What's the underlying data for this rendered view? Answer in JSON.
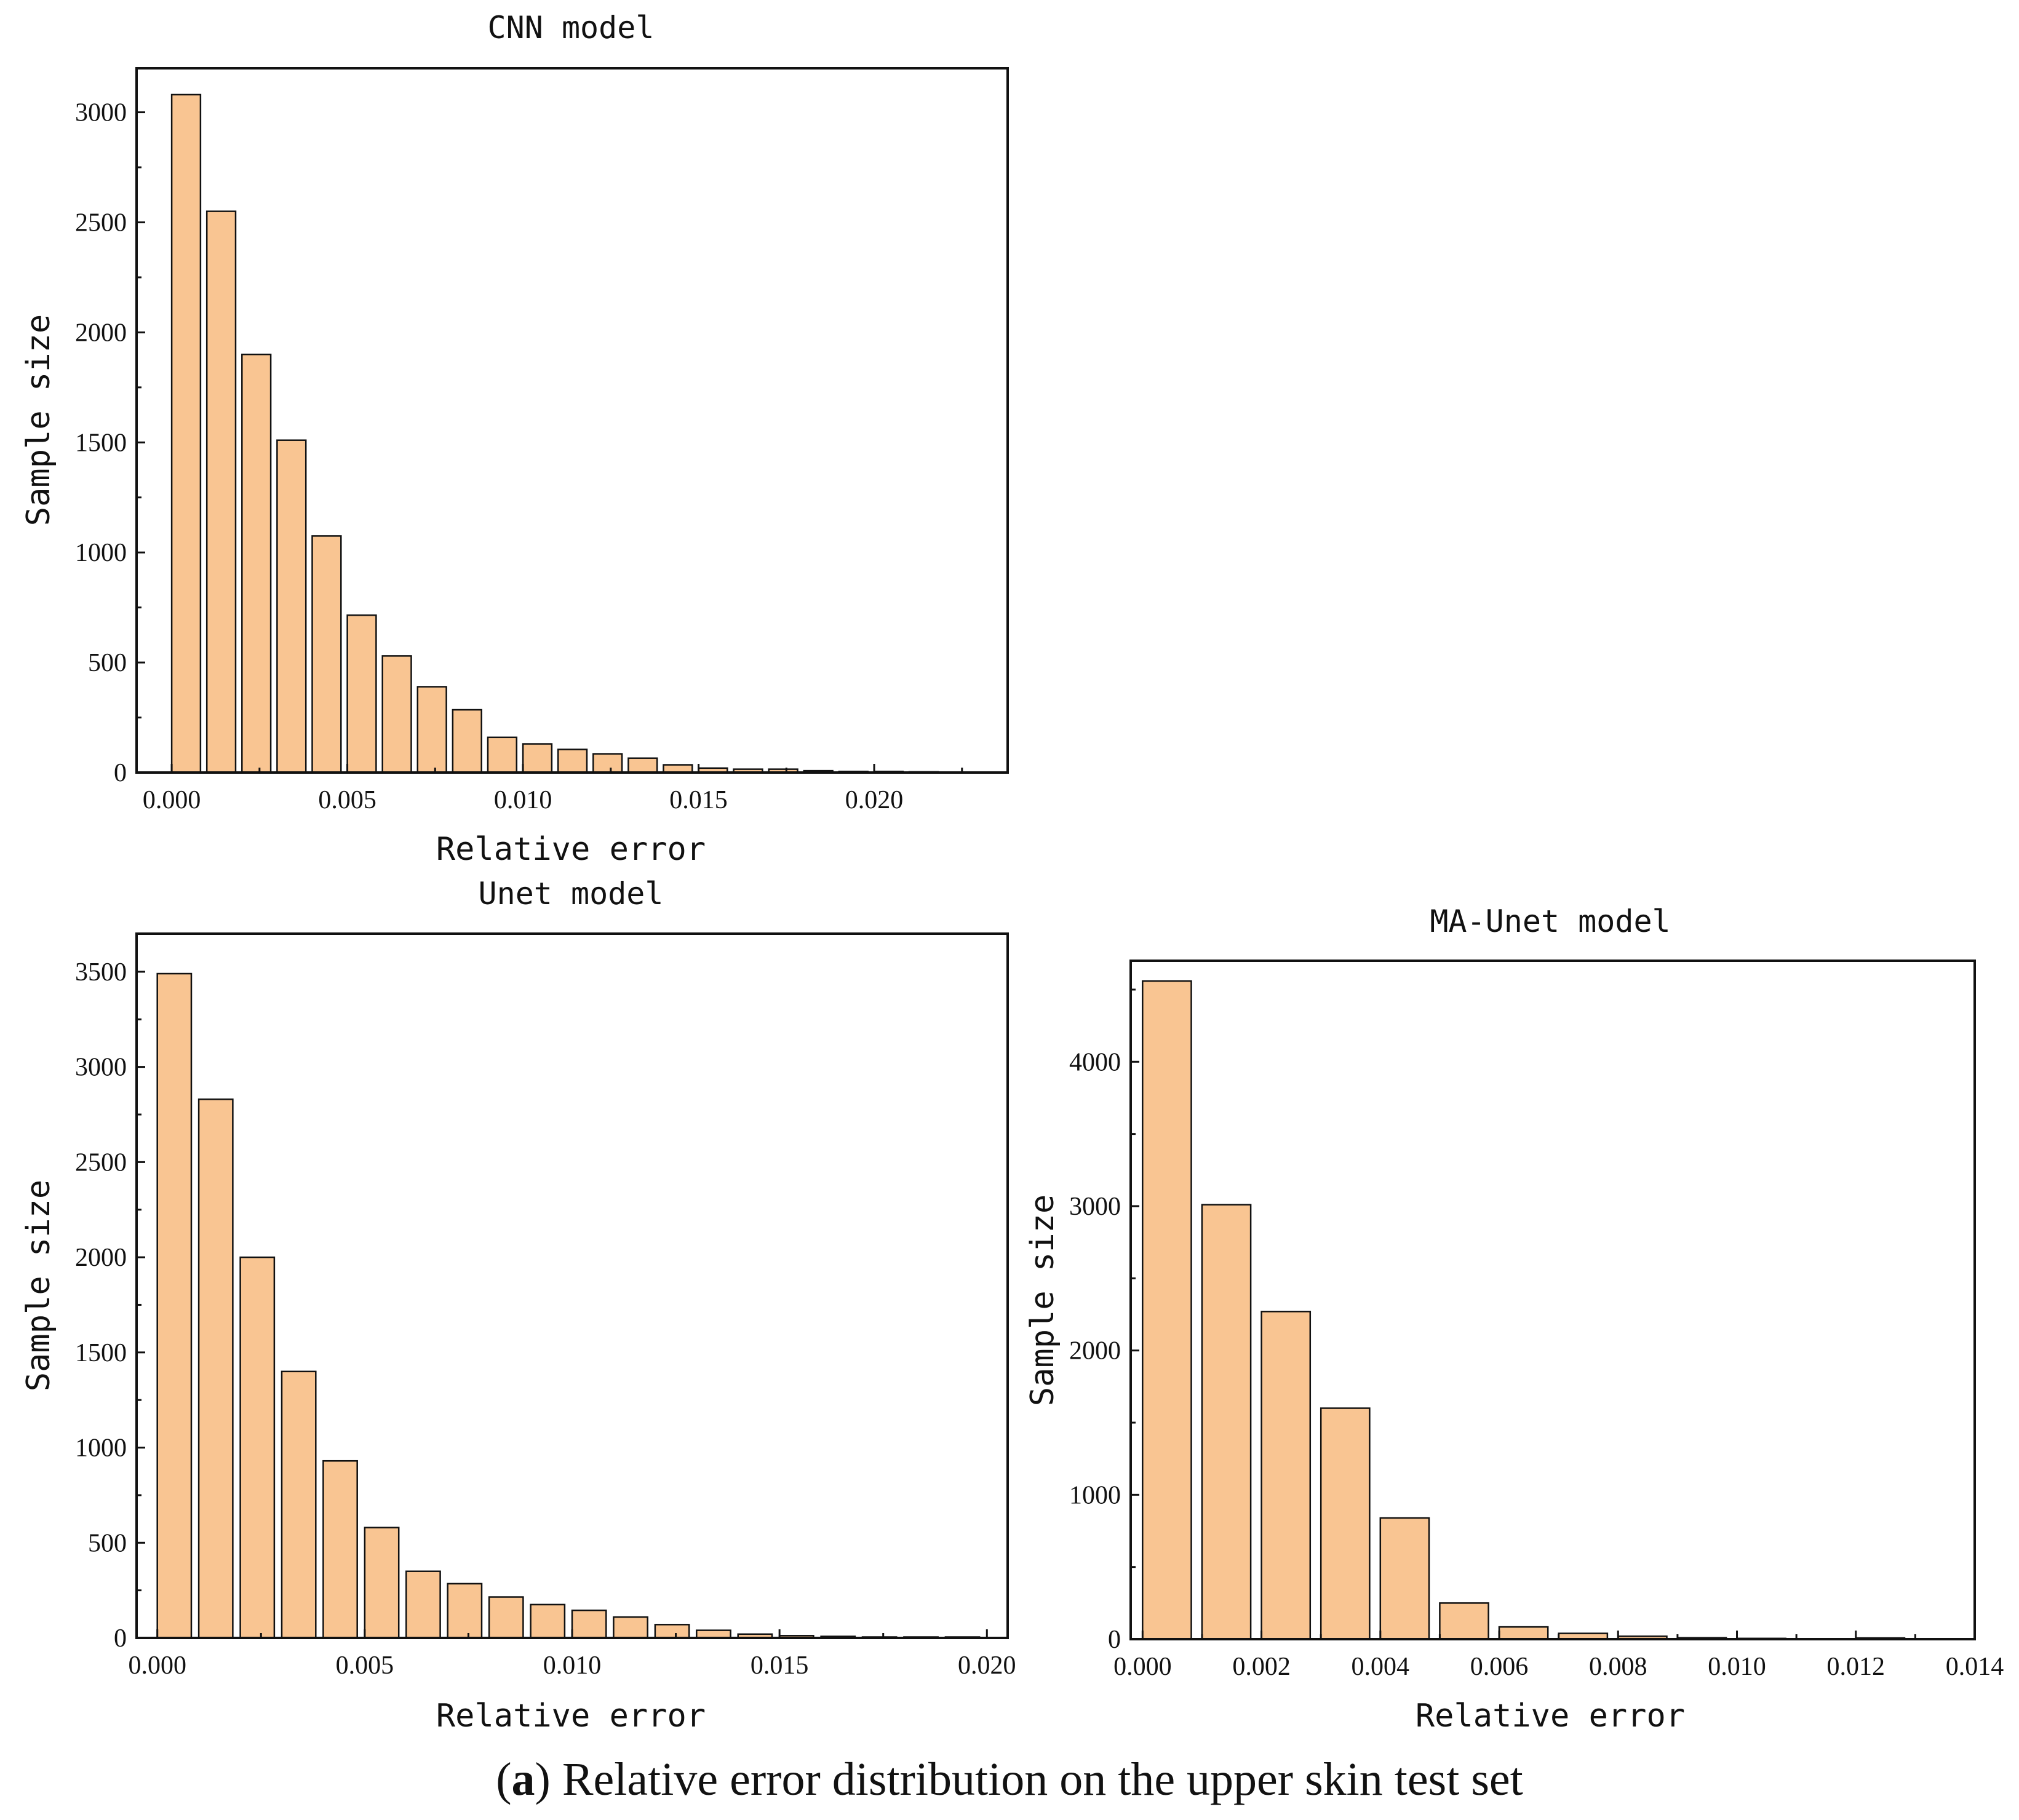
{
  "figure": {
    "caption_letter": "a",
    "caption_open": "(",
    "caption_close": ")",
    "caption_text": " Relative error distribution on the upper skin test set",
    "bar_color": "#f9c592",
    "edge_color": "#111111"
  },
  "chart_data": [
    {
      "type": "bar",
      "title": "CNN model",
      "xlabel": "Relative error",
      "ylabel": "Sample size",
      "xlim": [
        -0.001,
        0.0238
      ],
      "ylim": [
        0,
        3200
      ],
      "xticks": [
        0.0,
        0.005,
        0.01,
        0.015,
        0.02
      ],
      "xtick_labels": [
        "0.000",
        "0.005",
        "0.010",
        "0.015",
        "0.020"
      ],
      "yticks": [
        0,
        500,
        1000,
        1500,
        2000,
        2500,
        3000
      ],
      "ytick_labels": [
        "0",
        "500",
        "1000",
        "1500",
        "2000",
        "2500",
        "3000"
      ],
      "bin_width": 0.001,
      "x": [
        0.0,
        0.001,
        0.002,
        0.003,
        0.004,
        0.005,
        0.006,
        0.007,
        0.008,
        0.009,
        0.01,
        0.011,
        0.012,
        0.013,
        0.014,
        0.015,
        0.016,
        0.017,
        0.018,
        0.019,
        0.02,
        0.021,
        0.022
      ],
      "values": [
        3080,
        2550,
        1900,
        1510,
        1075,
        715,
        530,
        390,
        285,
        160,
        130,
        105,
        85,
        65,
        35,
        20,
        15,
        15,
        8,
        5,
        5,
        3,
        2
      ]
    },
    {
      "type": "bar",
      "title": "Unet model",
      "xlabel": "Relative error",
      "ylabel": "Sample size",
      "xlim": [
        -0.0005,
        0.0205
      ],
      "ylim": [
        0,
        3700
      ],
      "xticks": [
        0.0,
        0.005,
        0.01,
        0.015,
        0.02
      ],
      "xtick_labels": [
        "0.000",
        "0.005",
        "0.010",
        "0.015",
        "0.020"
      ],
      "yticks": [
        0,
        500,
        1000,
        1500,
        2000,
        2500,
        3000,
        3500
      ],
      "ytick_labels": [
        "0",
        "500",
        "1000",
        "1500",
        "2000",
        "2500",
        "3000",
        "3500"
      ],
      "bin_width": 0.001,
      "x": [
        0.0,
        0.001,
        0.002,
        0.003,
        0.004,
        0.005,
        0.006,
        0.007,
        0.008,
        0.009,
        0.01,
        0.011,
        0.012,
        0.013,
        0.014,
        0.015,
        0.016,
        0.017,
        0.018,
        0.019
      ],
      "values": [
        3490,
        2830,
        2000,
        1400,
        930,
        580,
        350,
        285,
        215,
        175,
        145,
        110,
        70,
        40,
        20,
        12,
        8,
        5,
        5,
        5
      ]
    },
    {
      "type": "bar",
      "title": "MA-Unet model",
      "xlabel": "Relative error",
      "ylabel": "Sample size",
      "xlim": [
        -0.0002,
        0.014
      ],
      "ylim": [
        0,
        4700
      ],
      "xticks": [
        0.0,
        0.002,
        0.004,
        0.006,
        0.008,
        0.01,
        0.012,
        0.014
      ],
      "xtick_labels": [
        "0.000",
        "0.002",
        "0.004",
        "0.006",
        "0.008",
        "0.010",
        "0.012",
        "0.014"
      ],
      "yticks": [
        0,
        1000,
        2000,
        3000,
        4000
      ],
      "ytick_labels": [
        "0",
        "1000",
        "2000",
        "3000",
        "4000"
      ],
      "bin_width": 0.001,
      "x": [
        0.0,
        0.001,
        0.002,
        0.003,
        0.004,
        0.005,
        0.006,
        0.007,
        0.008,
        0.009,
        0.01,
        0.011,
        0.012,
        0.013
      ],
      "values": [
        4560,
        3010,
        2270,
        1600,
        840,
        250,
        85,
        40,
        20,
        10,
        5,
        3,
        8,
        2
      ]
    }
  ]
}
